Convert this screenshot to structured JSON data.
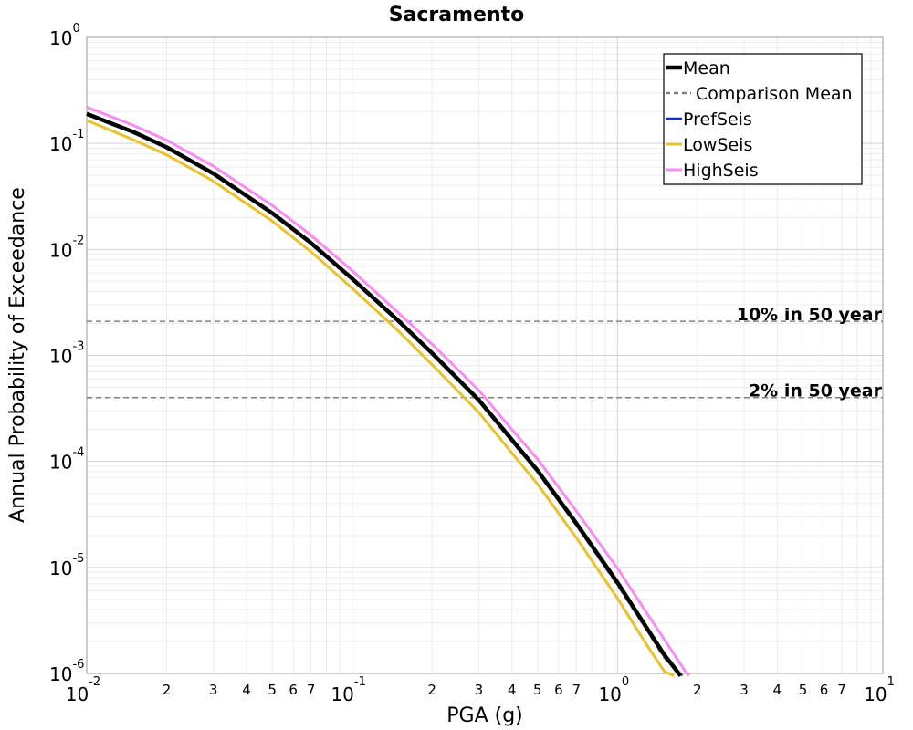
{
  "chart_data": {
    "type": "line",
    "title": "Sacramento",
    "xlabel": "PGA (g)",
    "ylabel": "Annual Probability of Exceedance",
    "x_scale": "log",
    "y_scale": "log",
    "xlim": [
      0.01,
      10
    ],
    "ylim": [
      1e-06,
      1
    ],
    "grid": true,
    "legend_position": "top-right",
    "x_major_ticks": [
      {
        "value": 0.01,
        "base": "10",
        "exp": "-2"
      },
      {
        "value": 0.1,
        "base": "10",
        "exp": "-1"
      },
      {
        "value": 1,
        "base": "10",
        "exp": "0"
      },
      {
        "value": 10,
        "base": "10",
        "exp": "1"
      }
    ],
    "x_minor_tick_labels": [
      "2",
      "3",
      "4",
      "5",
      "6",
      "7"
    ],
    "y_major_ticks": [
      {
        "value": 1,
        "base": "10",
        "exp": "0"
      },
      {
        "value": 0.1,
        "base": "10",
        "exp": "-1"
      },
      {
        "value": 0.01,
        "base": "10",
        "exp": "-2"
      },
      {
        "value": 0.001,
        "base": "10",
        "exp": "-3"
      },
      {
        "value": 0.0001,
        "base": "10",
        "exp": "-4"
      },
      {
        "value": 1e-05,
        "base": "10",
        "exp": "-5"
      },
      {
        "value": 1e-06,
        "base": "10",
        "exp": "-6"
      }
    ],
    "reference_lines": [
      {
        "label": "10% in 50 year",
        "y": 0.0021,
        "color": "#808080",
        "dash": "dashed"
      },
      {
        "label": "2% in 50 year",
        "y": 0.0004,
        "color": "#808080",
        "dash": "dashed"
      }
    ],
    "series": [
      {
        "name": "PrefSeis",
        "color": "#0033dd",
        "width": 2.5,
        "dash": "solid",
        "x": [
          0.01,
          0.015,
          0.02,
          0.03,
          0.05,
          0.07,
          0.1,
          0.15,
          0.2,
          0.3,
          0.4,
          0.5,
          0.7,
          1.0,
          1.3,
          1.5,
          1.73
        ],
        "y": [
          0.19,
          0.128,
          0.092,
          0.052,
          0.022,
          0.0115,
          0.0053,
          0.0021,
          0.00105,
          0.00038,
          0.00016,
          8.2e-05,
          2.6e-05,
          7.2e-06,
          2.6e-06,
          1.5e-06,
          9.5e-07
        ]
      },
      {
        "name": "LowSeis",
        "color": "#e8c22c",
        "width": 3,
        "dash": "solid",
        "x": [
          0.01,
          0.015,
          0.02,
          0.03,
          0.05,
          0.07,
          0.1,
          0.15,
          0.2,
          0.3,
          0.4,
          0.5,
          0.7,
          1.0,
          1.3,
          1.5,
          1.63
        ],
        "y": [
          0.165,
          0.108,
          0.078,
          0.044,
          0.0185,
          0.0095,
          0.0043,
          0.00168,
          0.00082,
          0.00029,
          0.00012,
          6.1e-05,
          1.9e-05,
          5.1e-06,
          1.8e-06,
          1.05e-06,
          9.5e-07
        ]
      },
      {
        "name": "HighSeis",
        "color": "#f78cf2",
        "width": 3,
        "dash": "solid",
        "x": [
          0.01,
          0.015,
          0.02,
          0.03,
          0.05,
          0.07,
          0.1,
          0.15,
          0.2,
          0.3,
          0.4,
          0.5,
          0.7,
          1.0,
          1.3,
          1.5,
          1.8,
          1.86
        ],
        "y": [
          0.22,
          0.148,
          0.107,
          0.061,
          0.026,
          0.0136,
          0.0063,
          0.0025,
          0.00128,
          0.00047,
          0.0002,
          0.000105,
          3.4e-05,
          9.8e-06,
          3.6e-06,
          2.1e-06,
          1.05e-06,
          9.5e-07
        ]
      },
      {
        "name": "Comparison Mean",
        "color": "#808080",
        "width": 2.5,
        "dash": "dashed",
        "x": [
          0.01,
          0.015,
          0.02,
          0.03,
          0.05,
          0.07,
          0.1,
          0.15,
          0.2,
          0.3,
          0.4,
          0.5,
          0.7,
          1.0,
          1.3,
          1.5,
          1.76
        ],
        "y": [
          0.19,
          0.128,
          0.092,
          0.052,
          0.022,
          0.0115,
          0.0053,
          0.0021,
          0.00104,
          0.00037,
          0.000155,
          7.9e-05,
          2.5e-05,
          6.8e-06,
          2.5e-06,
          1.4e-06,
          9.5e-07
        ]
      },
      {
        "name": "Mean",
        "color": "#000000",
        "width": 4.5,
        "dash": "solid",
        "x": [
          0.01,
          0.015,
          0.02,
          0.03,
          0.05,
          0.07,
          0.1,
          0.15,
          0.2,
          0.3,
          0.4,
          0.5,
          0.7,
          1.0,
          1.3,
          1.5,
          1.73
        ],
        "y": [
          0.19,
          0.128,
          0.092,
          0.052,
          0.022,
          0.0115,
          0.0053,
          0.0021,
          0.00105,
          0.00038,
          0.00016,
          8.2e-05,
          2.6e-05,
          7.2e-06,
          2.6e-06,
          1.5e-06,
          9.5e-07
        ]
      }
    ],
    "legend_entries": [
      {
        "name": "Mean",
        "color": "#000000",
        "dash": "solid",
        "width": 4.5
      },
      {
        "name": "Comparison Mean",
        "color": "#808080",
        "dash": "dashed",
        "width": 2.5
      },
      {
        "name": "PrefSeis",
        "color": "#0033dd",
        "dash": "solid",
        "width": 2.5
      },
      {
        "name": "LowSeis",
        "color": "#e8c22c",
        "dash": "solid",
        "width": 3
      },
      {
        "name": "HighSeis",
        "color": "#f78cf2",
        "dash": "solid",
        "width": 3
      }
    ]
  }
}
